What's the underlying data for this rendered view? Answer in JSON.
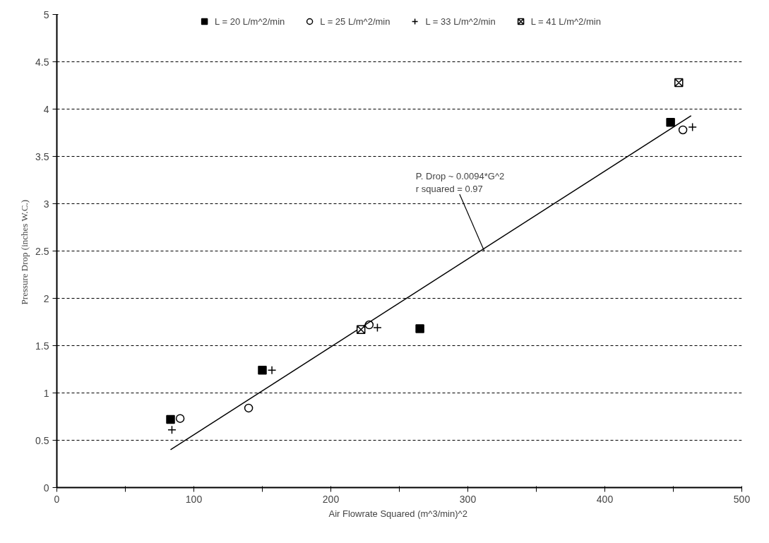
{
  "chart_data": {
    "type": "scatter",
    "xlabel": "Air Flowrate Squared  (m^3/min)^2",
    "ylabel": "Pressure Drop  (inches W.C.)",
    "xlim": [
      0,
      500
    ],
    "ylim": [
      0,
      5
    ],
    "xticks": [
      0,
      {
        "value": 50,
        "label": null
      },
      100,
      {
        "value": 150,
        "label": null
      },
      200,
      {
        "value": 250,
        "label": null
      },
      300,
      {
        "value": 350,
        "label": null
      },
      400,
      {
        "value": 450,
        "label": null
      },
      500
    ],
    "yticks": [
      0,
      0.5,
      1,
      1.5,
      2,
      2.5,
      3,
      3.5,
      4,
      4.5,
      5
    ],
    "grid": "y",
    "legend": "top",
    "series": [
      {
        "name": "L = 20 L/m^2/min",
        "color": "#000000",
        "marker": "square",
        "x": [
          83,
          150,
          265,
          448
        ],
        "values": [
          0.72,
          1.24,
          1.68,
          3.86
        ]
      },
      {
        "name": "L = 25 L/m^2/min",
        "color": "#000000",
        "marker": "circle",
        "x": [
          90,
          140,
          228,
          457
        ],
        "values": [
          0.73,
          0.84,
          1.72,
          3.78
        ]
      },
      {
        "name": "L = 33 L/m^2/min",
        "color": "#000000",
        "marker": "cross",
        "x": [
          84,
          157,
          234,
          464
        ],
        "values": [
          0.61,
          1.24,
          1.69,
          3.81
        ]
      },
      {
        "name": "L = 41 L/m^2/min",
        "color": "#000000",
        "x": [
          222,
          454
        ],
        "values": [
          1.67,
          4.28
        ]
      },
      {
        "type": "line",
        "color": "#000000",
        "marker": "none",
        "x": [
          83,
          463
        ],
        "values": [
          0.4,
          3.93
        ]
      }
    ],
    "annotations": [
      {
        "text": "P. Drop ~ 0.0094*G^2\nr squared = 0.97",
        "x": 312,
        "y": 2.5
      }
    ]
  }
}
